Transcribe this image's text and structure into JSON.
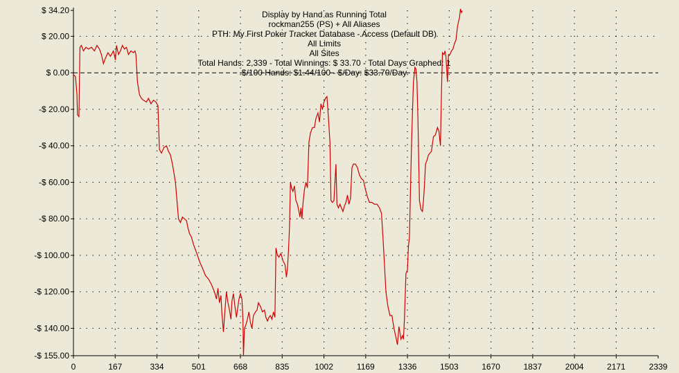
{
  "chart_data": {
    "type": "line",
    "title_lines": [
      "Display by Hand as Running Total",
      "rockman255 (PS) + All Aliases",
      "PTH: My First Poker Tracker Database - Access (Default DB)",
      "All Limits",
      "All Sites",
      "Total Hands: 2,339 - Total Winnings: $ 33.70 - Total Days Graphed: 1",
      "$/100 Hands: $1.44/100 - $/Day: $33.70/Day"
    ],
    "xlim": [
      0,
      2339
    ],
    "ylim": [
      -155,
      34.2
    ],
    "x_ticks": [
      0,
      167,
      334,
      501,
      668,
      835,
      1002,
      1169,
      1336,
      1503,
      1670,
      1837,
      2004,
      2171,
      2339
    ],
    "x_tick_labels": [
      "0",
      "167",
      "334",
      "501",
      "668",
      "835",
      "1002",
      "1169",
      "1336",
      "1503",
      "1670",
      "1837",
      "2004",
      "2171",
      "2339"
    ],
    "y_ticks": [
      34.2,
      20,
      0,
      -20,
      -40,
      -60,
      -80,
      -100,
      -120,
      -140,
      -155
    ],
    "y_tick_labels": [
      "$ 34.20",
      "$ 20.00",
      "$ 0.00",
      "-$ 20.00",
      "-$ 40.00",
      "-$ 60.00",
      "-$ 80.00",
      "-$ 100.00",
      "-$ 120.00",
      "-$ 140.00",
      "-$ 155.00"
    ],
    "grid": "dotted",
    "zero_line": "dashed",
    "series": [
      {
        "color": "#cc0000",
        "points": [
          [
            0,
            -1
          ],
          [
            8,
            -2
          ],
          [
            14,
            -12
          ],
          [
            16,
            -23
          ],
          [
            22,
            -24
          ],
          [
            26,
            14
          ],
          [
            32,
            15
          ],
          [
            40,
            12
          ],
          [
            50,
            14
          ],
          [
            60,
            13
          ],
          [
            72,
            14
          ],
          [
            84,
            12
          ],
          [
            94,
            15
          ],
          [
            104,
            13
          ],
          [
            112,
            10
          ],
          [
            120,
            5
          ],
          [
            128,
            8
          ],
          [
            138,
            11
          ],
          [
            148,
            9
          ],
          [
            160,
            12
          ],
          [
            168,
            7
          ],
          [
            172,
            15
          ],
          [
            180,
            10
          ],
          [
            188,
            12
          ],
          [
            196,
            15
          ],
          [
            204,
            13
          ],
          [
            212,
            14
          ],
          [
            220,
            10
          ],
          [
            230,
            12
          ],
          [
            240,
            11
          ],
          [
            246,
            12
          ],
          [
            250,
            10
          ],
          [
            256,
            -5
          ],
          [
            264,
            -12
          ],
          [
            272,
            -14
          ],
          [
            280,
            -15
          ],
          [
            292,
            -16
          ],
          [
            300,
            -14
          ],
          [
            310,
            -17
          ],
          [
            320,
            -15
          ],
          [
            330,
            -16
          ],
          [
            338,
            -18
          ],
          [
            344,
            -42
          ],
          [
            352,
            -44
          ],
          [
            362,
            -41
          ],
          [
            372,
            -40
          ],
          [
            380,
            -43
          ],
          [
            388,
            -45
          ],
          [
            396,
            -50
          ],
          [
            402,
            -55
          ],
          [
            408,
            -60
          ],
          [
            414,
            -70
          ],
          [
            420,
            -80
          ],
          [
            428,
            -82
          ],
          [
            436,
            -79
          ],
          [
            444,
            -80
          ],
          [
            452,
            -81
          ],
          [
            458,
            -85
          ],
          [
            464,
            -88
          ],
          [
            472,
            -90
          ],
          [
            480,
            -94
          ],
          [
            488,
            -97
          ],
          [
            496,
            -100
          ],
          [
            506,
            -104
          ],
          [
            516,
            -107
          ],
          [
            528,
            -111
          ],
          [
            540,
            -113
          ],
          [
            552,
            -116
          ],
          [
            564,
            -120
          ],
          [
            572,
            -124
          ],
          [
            578,
            -118
          ],
          [
            584,
            -126
          ],
          [
            590,
            -122
          ],
          [
            594,
            -132
          ],
          [
            600,
            -142
          ],
          [
            606,
            -130
          ],
          [
            612,
            -120
          ],
          [
            618,
            -126
          ],
          [
            624,
            -130
          ],
          [
            630,
            -135
          ],
          [
            634,
            -125
          ],
          [
            640,
            -121
          ],
          [
            646,
            -128
          ],
          [
            652,
            -134
          ],
          [
            656,
            -130
          ],
          [
            662,
            -124
          ],
          [
            668,
            -121
          ],
          [
            674,
            -124
          ],
          [
            678,
            -135
          ],
          [
            680,
            -155
          ],
          [
            684,
            -140
          ],
          [
            690,
            -138
          ],
          [
            696,
            -135
          ],
          [
            702,
            -131
          ],
          [
            708,
            -137
          ],
          [
            714,
            -140
          ],
          [
            720,
            -133
          ],
          [
            728,
            -131
          ],
          [
            734,
            -130
          ],
          [
            740,
            -126
          ],
          [
            748,
            -128
          ],
          [
            756,
            -131
          ],
          [
            764,
            -130
          ],
          [
            770,
            -134
          ],
          [
            776,
            -136
          ],
          [
            782,
            -134
          ],
          [
            788,
            -133
          ],
          [
            794,
            -135
          ],
          [
            800,
            -131
          ],
          [
            806,
            -134
          ],
          [
            810,
            -96
          ],
          [
            816,
            -100
          ],
          [
            822,
            -101
          ],
          [
            830,
            -99
          ],
          [
            838,
            -103
          ],
          [
            846,
            -105
          ],
          [
            852,
            -112
          ],
          [
            856,
            -107
          ],
          [
            860,
            -98
          ],
          [
            864,
            -85
          ],
          [
            868,
            -60
          ],
          [
            872,
            -63
          ],
          [
            878,
            -65
          ],
          [
            884,
            -62
          ],
          [
            890,
            -70
          ],
          [
            896,
            -72
          ],
          [
            902,
            -76
          ],
          [
            906,
            -79
          ],
          [
            910,
            -74
          ],
          [
            914,
            -80
          ],
          [
            918,
            -72
          ],
          [
            924,
            -64
          ],
          [
            930,
            -60
          ],
          [
            936,
            -63
          ],
          [
            942,
            -38
          ],
          [
            948,
            -33
          ],
          [
            956,
            -30
          ],
          [
            964,
            -30
          ],
          [
            970,
            -25
          ],
          [
            978,
            -22
          ],
          [
            984,
            -27
          ],
          [
            990,
            -17
          ],
          [
            996,
            -20
          ],
          [
            1002,
            -16
          ],
          [
            1008,
            -14
          ],
          [
            1014,
            -13
          ],
          [
            1020,
            -25
          ],
          [
            1026,
            -38
          ],
          [
            1030,
            -70
          ],
          [
            1036,
            -71
          ],
          [
            1042,
            -70
          ],
          [
            1046,
            -60
          ],
          [
            1050,
            -50
          ],
          [
            1054,
            -72
          ],
          [
            1060,
            -74
          ],
          [
            1066,
            -72
          ],
          [
            1072,
            -74
          ],
          [
            1078,
            -76
          ],
          [
            1084,
            -73
          ],
          [
            1090,
            -71
          ],
          [
            1096,
            -67
          ],
          [
            1102,
            -72
          ],
          [
            1108,
            -69
          ],
          [
            1114,
            -52
          ],
          [
            1120,
            -50
          ],
          [
            1128,
            -50
          ],
          [
            1136,
            -52
          ],
          [
            1144,
            -56
          ],
          [
            1152,
            -58
          ],
          [
            1160,
            -59
          ],
          [
            1168,
            -64
          ],
          [
            1176,
            -68
          ],
          [
            1184,
            -71
          ],
          [
            1194,
            -71
          ],
          [
            1204,
            -72
          ],
          [
            1214,
            -72
          ],
          [
            1224,
            -74
          ],
          [
            1232,
            -77
          ],
          [
            1238,
            -90
          ],
          [
            1244,
            -105
          ],
          [
            1250,
            -120
          ],
          [
            1258,
            -128
          ],
          [
            1266,
            -133
          ],
          [
            1274,
            -133
          ],
          [
            1282,
            -140
          ],
          [
            1290,
            -145
          ],
          [
            1296,
            -149
          ],
          [
            1302,
            -139
          ],
          [
            1310,
            -146
          ],
          [
            1316,
            -144
          ],
          [
            1320,
            -146
          ],
          [
            1324,
            -135
          ],
          [
            1330,
            -110
          ],
          [
            1336,
            -108
          ],
          [
            1340,
            -95
          ],
          [
            1344,
            -90
          ],
          [
            1348,
            -65
          ],
          [
            1352,
            -40
          ],
          [
            1356,
            -22
          ],
          [
            1360,
            -5
          ],
          [
            1366,
            3
          ],
          [
            1370,
            2
          ],
          [
            1374,
            -5
          ],
          [
            1378,
            -25
          ],
          [
            1384,
            -70
          ],
          [
            1390,
            -75
          ],
          [
            1396,
            -76
          ],
          [
            1400,
            -70
          ],
          [
            1404,
            -62
          ],
          [
            1408,
            -50
          ],
          [
            1414,
            -48
          ],
          [
            1420,
            -45
          ],
          [
            1426,
            -44
          ],
          [
            1432,
            -43
          ],
          [
            1440,
            -35
          ],
          [
            1448,
            -34
          ],
          [
            1456,
            -30
          ],
          [
            1462,
            -32
          ],
          [
            1468,
            -40
          ],
          [
            1472,
            -10
          ],
          [
            1476,
            11
          ],
          [
            1482,
            10
          ],
          [
            1486,
            12
          ],
          [
            1490,
            9
          ],
          [
            1496,
            -5
          ],
          [
            1500,
            10
          ],
          [
            1506,
            10
          ],
          [
            1512,
            12
          ],
          [
            1518,
            13
          ],
          [
            1524,
            16
          ],
          [
            1530,
            18
          ],
          [
            1536,
            25
          ],
          [
            1540,
            28
          ],
          [
            1544,
            30
          ],
          [
            1548,
            35
          ],
          [
            1552,
            33
          ],
          [
            1556,
            34
          ]
        ]
      }
    ]
  }
}
